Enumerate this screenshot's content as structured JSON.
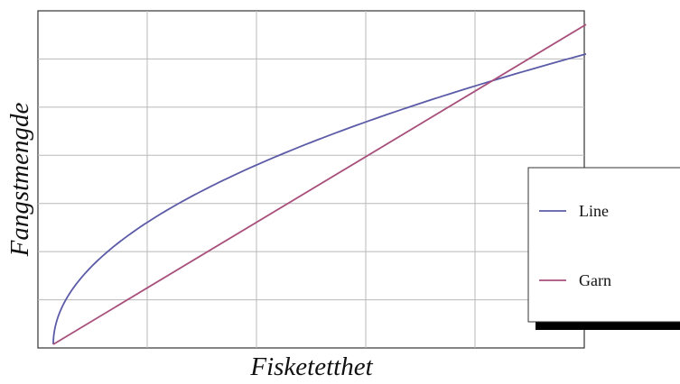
{
  "chart_data": {
    "type": "line",
    "title": "",
    "xlabel": "Fisketetthet",
    "ylabel": "Fangstmengde",
    "xlim": [
      0,
      10
    ],
    "ylim": [
      0,
      10
    ],
    "grid": true,
    "ticks_labeled": false,
    "legend_placement": "bottom-right",
    "series": [
      {
        "name": "Line",
        "color": "#5b5ba8",
        "function": "sqrt",
        "x": [
          0,
          0.25,
          0.5,
          1,
          2,
          3,
          4,
          5,
          6,
          7,
          8,
          9,
          10
        ],
        "y": [
          0,
          1.4,
          1.98,
          2.8,
          3.96,
          4.85,
          5.6,
          6.26,
          6.86,
          7.41,
          7.92,
          8.4,
          8.85
        ]
      },
      {
        "name": "Garn",
        "color": "#a8507c",
        "function": "linear",
        "x": [
          0,
          10
        ],
        "y": [
          0,
          9.75
        ]
      }
    ]
  }
}
